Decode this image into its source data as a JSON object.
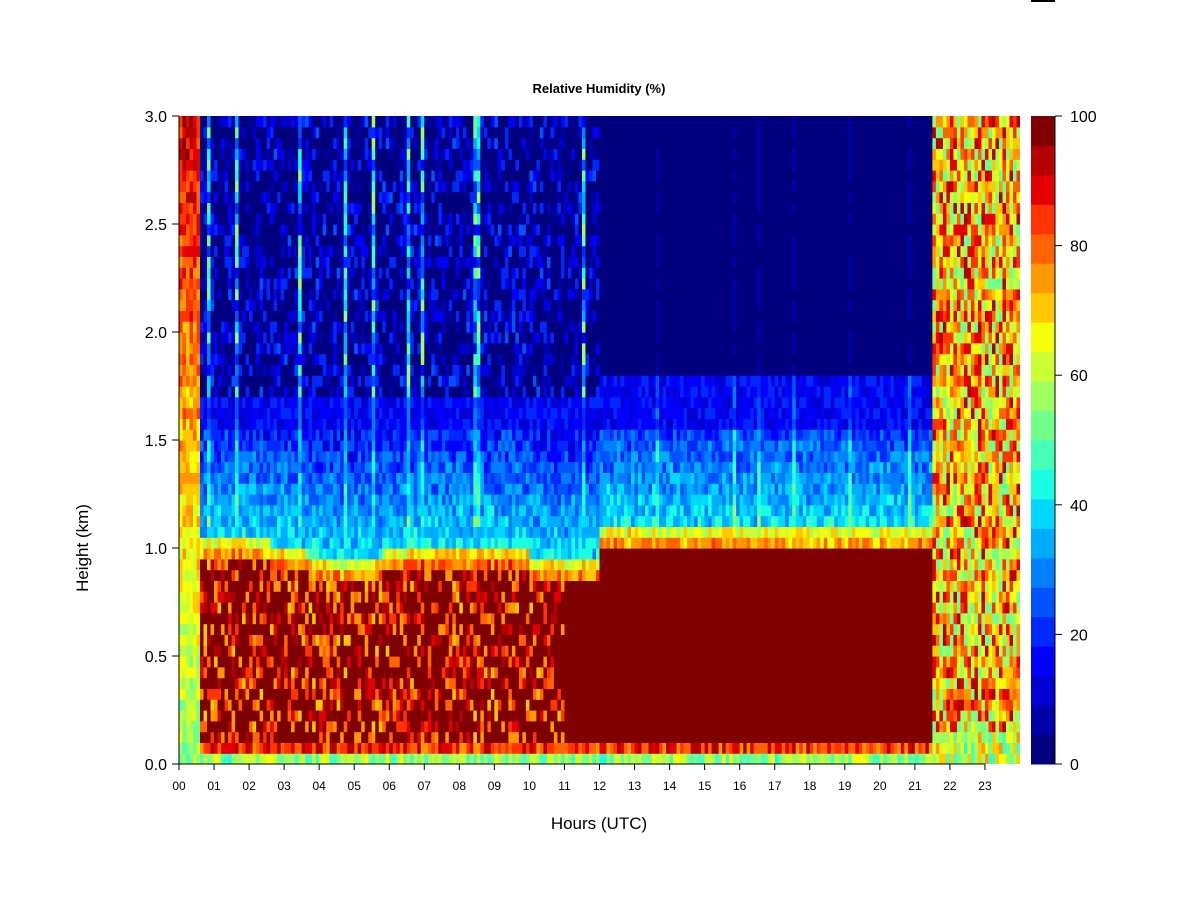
{
  "chart_data": {
    "type": "heatmap",
    "title": "Relative Humidity (%)",
    "xlabel": "Hours (UTC)",
    "ylabel": "Height (km)",
    "x_ticks": [
      "00",
      "01",
      "02",
      "03",
      "04",
      "05",
      "06",
      "07",
      "08",
      "09",
      "10",
      "11",
      "12",
      "13",
      "14",
      "15",
      "16",
      "17",
      "18",
      "19",
      "20",
      "21",
      "22",
      "23"
    ],
    "xlim": [
      0,
      24
    ],
    "y_ticks": [
      "0.0",
      "0.5",
      "1.0",
      "1.5",
      "2.0",
      "2.5",
      "3.0"
    ],
    "ylim": [
      0,
      3.0
    ],
    "colorbar": {
      "ticks": [
        "0",
        "20",
        "40",
        "60",
        "80",
        "100"
      ],
      "range": [
        0,
        100
      ],
      "levels": 20,
      "colors": [
        "#00007f",
        "#0000a8",
        "#0000d2",
        "#0000fc",
        "#0028ff",
        "#0054ff",
        "#0080ff",
        "#00acff",
        "#00d8ff",
        "#1affe4",
        "#46ffb8",
        "#72ff8c",
        "#9eff60",
        "#caff34",
        "#f6ff08",
        "#ffc800",
        "#ff9800",
        "#ff6400",
        "#ff3400",
        "#e40000",
        "#b40000",
        "#7f0000"
      ]
    },
    "profile_description_by_time": [
      {
        "hours": [
          0.0,
          0.6
        ],
        "regime": "moist column",
        "rh_surface": 55,
        "rh_top": 85
      },
      {
        "hours": [
          0.6,
          12.0
        ],
        "regime": "capped boundary layer",
        "bl_top_km": 0.95,
        "rh_below_top": 100,
        "rh_above_1_5_km": 10
      },
      {
        "hours": [
          12.0,
          21.5
        ],
        "regime": "capped boundary layer",
        "bl_top_km": 1.05,
        "rh_below_top": 100,
        "rh_above_1_8_km": 0
      },
      {
        "hours": [
          21.5,
          24.0
        ],
        "regime": "moist column",
        "rh_surface": 70,
        "rh_top": 90
      }
    ]
  }
}
